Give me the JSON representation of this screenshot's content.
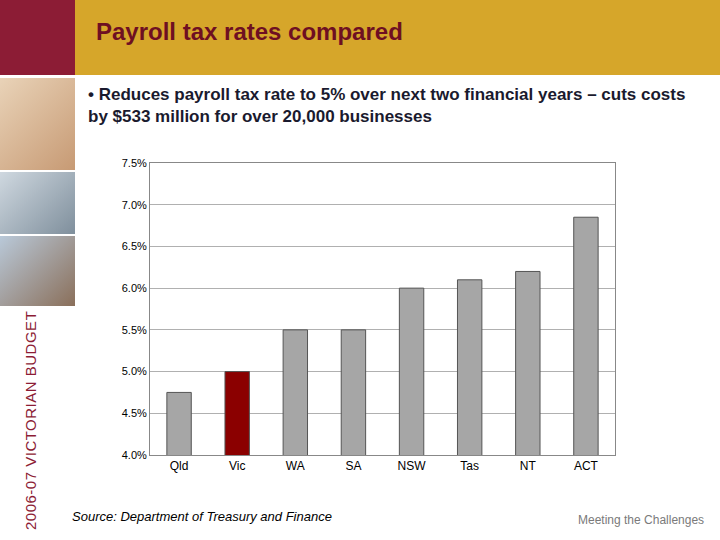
{
  "slide": {
    "bullet": "• Reduces payroll tax rate to 5% over next two financial years – cuts costs by $533 million for over 20,000 businesses",
    "side_label": "2006-07 VICTORIAN BUDGET",
    "source": "Source: Department of Treasury and Finance",
    "footer": "Meeting the Challenges"
  },
  "chart_data": {
    "type": "bar",
    "title": "Payroll tax rates compared",
    "categories": [
      "Qld",
      "Vic",
      "WA",
      "SA",
      "NSW",
      "Tas",
      "NT",
      "ACT"
    ],
    "values": [
      4.75,
      5.0,
      5.5,
      5.5,
      6.0,
      6.1,
      6.2,
      6.85
    ],
    "colors": [
      "#a6a6a6",
      "#8b0000",
      "#a6a6a6",
      "#a6a6a6",
      "#a6a6a6",
      "#a6a6a6",
      "#a6a6a6",
      "#a6a6a6"
    ],
    "ylim": [
      4.0,
      7.5
    ],
    "yticks": [
      {
        "value": 4.0,
        "label": "4.0%"
      },
      {
        "value": 4.5,
        "label": "4.5%"
      },
      {
        "value": 5.0,
        "label": "5.0%"
      },
      {
        "value": 5.5,
        "label": "5.5%"
      },
      {
        "value": 6.0,
        "label": "6.0%"
      },
      {
        "value": 6.5,
        "label": "6.5%"
      },
      {
        "value": 7.0,
        "label": "7.0%"
      },
      {
        "value": 7.5,
        "label": "7.5%"
      }
    ],
    "grid": true
  }
}
